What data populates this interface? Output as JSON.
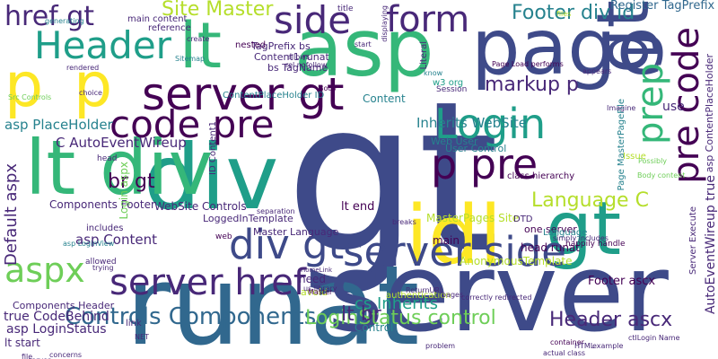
{
  "palette": {
    "purple": "#440154",
    "indigo": "#482878",
    "blue": "#3e4a89",
    "slate": "#31688e",
    "teal": "#26828e",
    "cyan": "#1f9e89",
    "green": "#35b779",
    "lime": "#6ece58",
    "yellowgreen": "#b5de2b",
    "yellow": "#fde725"
  },
  "words": [
    "gt",
    "lt",
    "runat",
    "server",
    "asp",
    "page",
    "div",
    "idl",
    "pre code",
    "p",
    "Header",
    "server gt",
    "lt div",
    "div gt",
    "p pre",
    "prep",
    "code pre",
    "Login",
    "server side",
    "server href",
    "aspx",
    "href gt",
    "side",
    "form",
    "Site Master",
    "Footer div id",
    "Register TagPrefix",
    "markup p",
    "Controls Components",
    "LoginStatus control",
    "Header ascx",
    "Default aspx",
    "asp PlaceHolder",
    "C AutoEventWireup",
    "Language C",
    "Inherits WebSite",
    "MasterPages Site",
    "cs Inherits",
    "lt br",
    "lt end",
    "br gt",
    "asp Content",
    "WebSite Controls",
    "LoggedInTemplate",
    "Master Language",
    "Components Footer",
    "Footer ascx",
    "AutoEventWireup true",
    "Components Header",
    "true CodeBehind",
    "asp LoginStatus",
    "lt start",
    "asp ContentPlaceHolder",
    "Page MasterPageFile",
    "Server Execute",
    "TagPrefix bs",
    "Content1 runat",
    "bs TagName",
    "main content",
    "reference",
    "Login aspx",
    "Web User",
    "User Control",
    "class hierarchy",
    "head runat",
    "one server",
    "includes",
    "asp LoginView",
    "Language",
    "ContentPlaceHolder ID",
    "Content",
    "w3 org",
    "Session",
    "nested",
    "AnonymousTemplate",
    "authentication",
    "Control",
    "main",
    "Body",
    "ID Content1",
    "Literal",
    "Sitemap",
    "rel nofollow",
    "title",
    "HomeLink",
    "Src Controls",
    "Issue",
    "Possibly",
    "use",
    "know",
    "generating",
    "rendered",
    "DTD",
    "happily handle",
    "Imagine",
    "Page Load performs",
    "simply includes",
    "correctly redirected",
    "actual class",
    "ctlLogin Name",
    "allowed",
    "trying",
    "concerns",
    "link",
    "NET",
    "head",
    "choice",
    "avoid",
    "need",
    "us library",
    "Master",
    "ReturnURL",
    "container",
    "separation",
    "breaks",
    "problem",
    "pages",
    "appears",
    "create",
    "start",
    "displaying",
    "Body content",
    "allows",
    "web",
    "example",
    "HTML",
    "files",
    "file",
    "server",
    "library"
  ]
}
